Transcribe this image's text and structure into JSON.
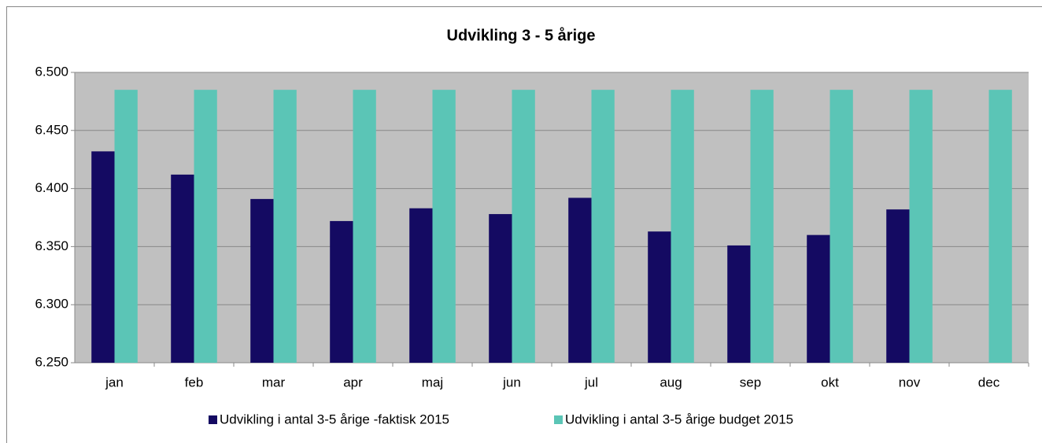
{
  "chart_data": {
    "type": "bar",
    "title": "Udvikling 3 - 5 årige",
    "categories": [
      "jan",
      "feb",
      "mar",
      "apr",
      "maj",
      "jun",
      "jul",
      "aug",
      "sep",
      "okt",
      "nov",
      "dec"
    ],
    "series": [
      {
        "name": "Udvikling i antal 3-5 årige -faktisk 2015",
        "color": "#140a62",
        "values": [
          6432,
          6412,
          6391,
          6372,
          6383,
          6378,
          6392,
          6363,
          6351,
          6360,
          6382,
          null
        ]
      },
      {
        "name": "Udvikling i antal 3-5 årige budget 2015",
        "color": "#5bc5b6",
        "values": [
          6485,
          6485,
          6485,
          6485,
          6485,
          6485,
          6485,
          6485,
          6485,
          6485,
          6485,
          6485
        ]
      }
    ],
    "ylim": [
      6250,
      6500
    ],
    "yticks": [
      {
        "value": 6250,
        "label": "6.250"
      },
      {
        "value": 6300,
        "label": "6.300"
      },
      {
        "value": 6350,
        "label": "6.350"
      },
      {
        "value": 6400,
        "label": "6.400"
      },
      {
        "value": 6450,
        "label": "6.450"
      },
      {
        "value": 6500,
        "label": "6.500"
      }
    ],
    "grid": true,
    "legend": "bottom"
  }
}
